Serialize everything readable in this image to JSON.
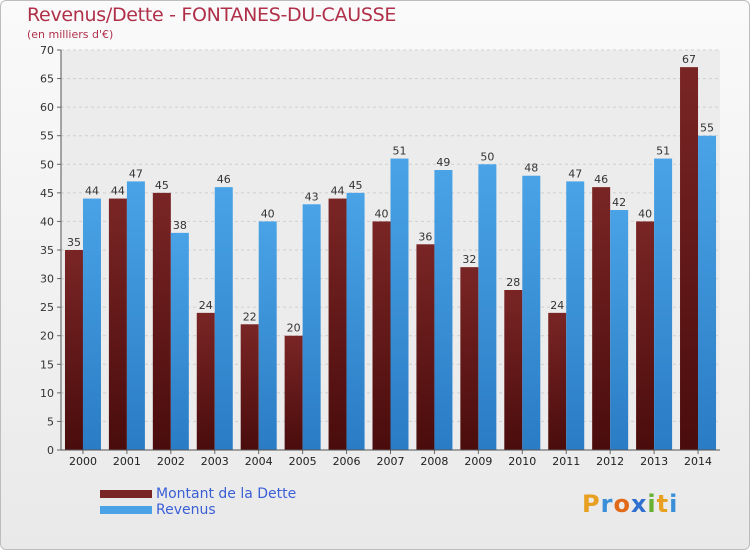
{
  "title": "Revenus/Dette - FONTANES-DU-CAUSSE",
  "subtitle": "(en milliers d'€)",
  "colors": {
    "title": "#b0304a",
    "dette": "#7a2525",
    "revenus": "#4aa3e6",
    "legend_text": "#3a5fd6"
  },
  "legend": [
    {
      "label": "Montant de la Dette",
      "color": "#7a2525"
    },
    {
      "label": "Revenus",
      "color": "#4aa3e6"
    }
  ],
  "logo": {
    "letters": [
      {
        "ch": "P",
        "color": "#e8a020"
      },
      {
        "ch": "r",
        "color": "#3a8fd8"
      },
      {
        "ch": "o",
        "color": "#e06a1a"
      },
      {
        "ch": "x",
        "color": "#2f6fcf"
      },
      {
        "ch": "i",
        "color": "#66b032"
      },
      {
        "ch": "t",
        "color": "#e8a020"
      },
      {
        "ch": "i",
        "color": "#3a8fd8"
      }
    ]
  },
  "chart_data": {
    "type": "bar",
    "categories": [
      "2000",
      "2001",
      "2002",
      "2003",
      "2004",
      "2005",
      "2006",
      "2007",
      "2008",
      "2009",
      "2010",
      "2011",
      "2012",
      "2013",
      "2014"
    ],
    "series": [
      {
        "name": "Montant de la Dette",
        "values": [
          35,
          44,
          45,
          24,
          22,
          20,
          44,
          40,
          36,
          32,
          28,
          24,
          46,
          40,
          67
        ]
      },
      {
        "name": "Revenus",
        "values": [
          44,
          47,
          38,
          46,
          40,
          43,
          45,
          51,
          49,
          50,
          48,
          47,
          42,
          51,
          55
        ]
      }
    ],
    "ylim": [
      0,
      70
    ],
    "yticks": [
      0,
      5,
      10,
      15,
      20,
      25,
      30,
      35,
      40,
      45,
      50,
      55,
      60,
      65,
      70
    ],
    "grid": true,
    "legend_position": "bottom-left"
  }
}
